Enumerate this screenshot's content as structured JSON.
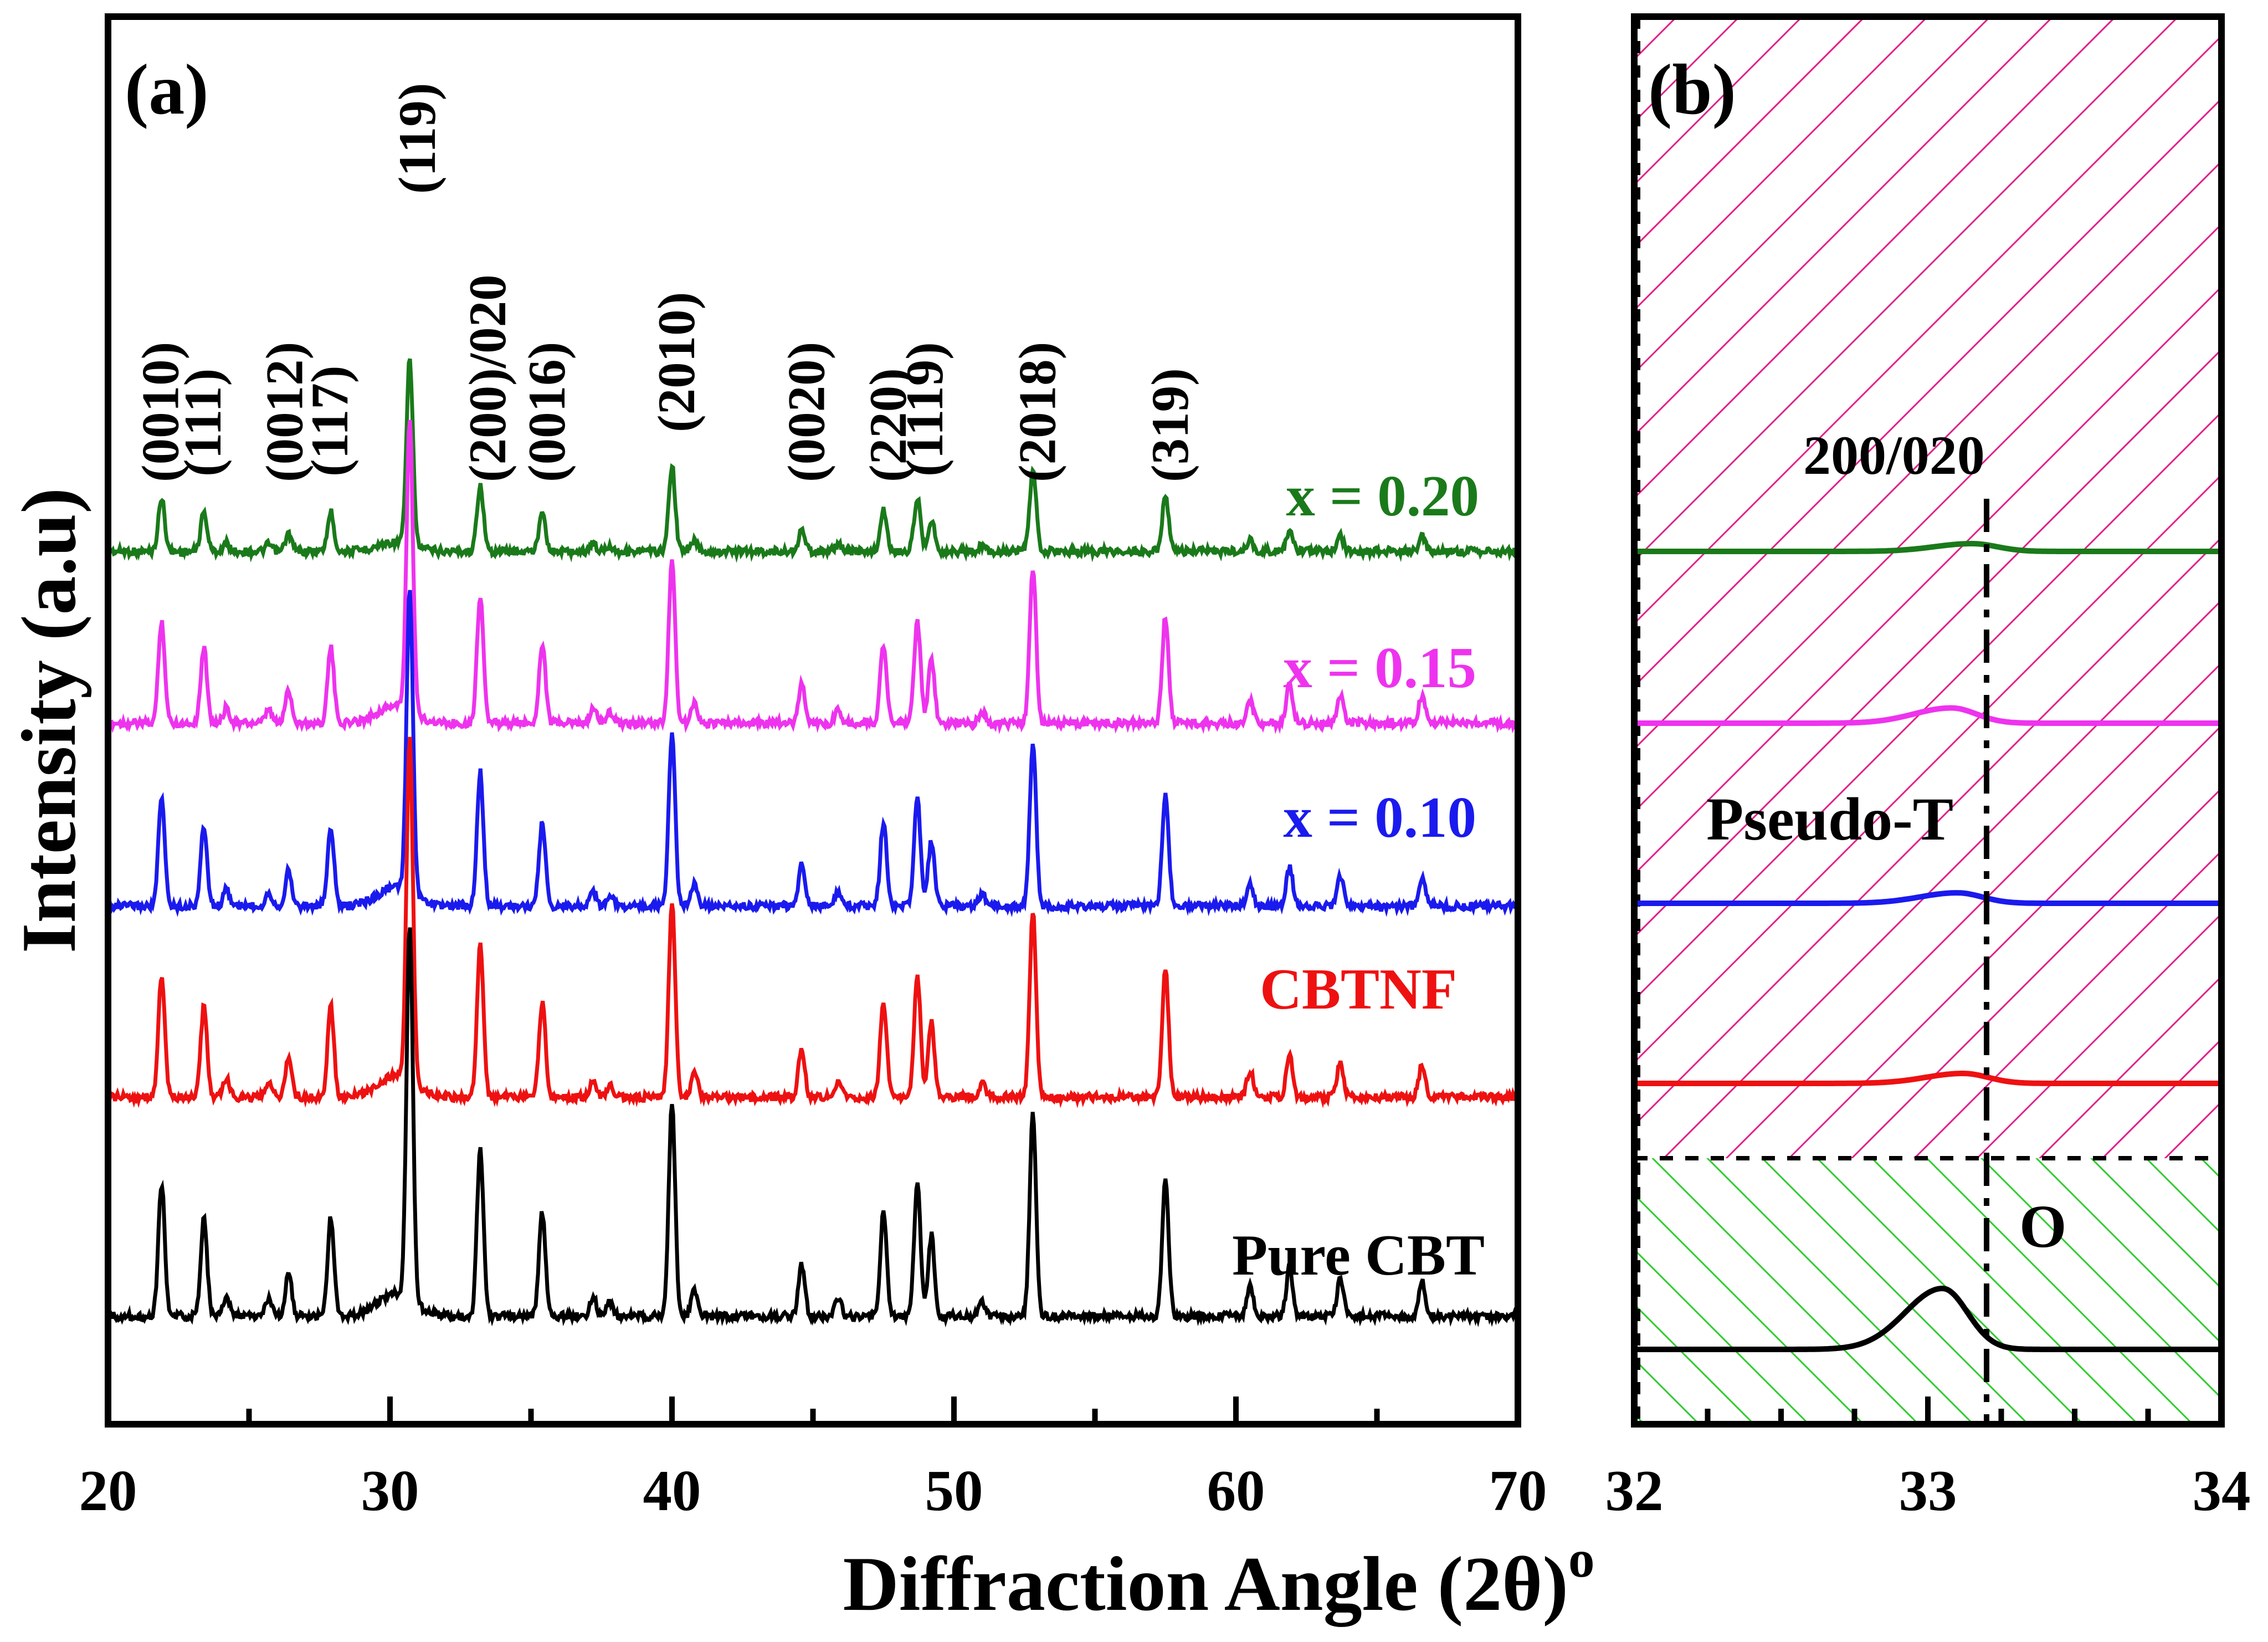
{
  "chart_data": [
    {
      "panel_label": "(a)",
      "type": "line",
      "title": "",
      "xlabel": "Diffraction Angle (2θ)",
      "xlabel_superscript": "o",
      "ylabel": "Intensity (a.u)",
      "xlim": [
        20,
        70
      ],
      "x_ticks": [
        20,
        30,
        40,
        50,
        60,
        70
      ],
      "x_tick_labels": [
        "20",
        "30",
        "40",
        "50",
        "60",
        "70"
      ],
      "grid": false,
      "legend": "inline labels at right of each trace",
      "peaks": [
        {
          "x": 21.9,
          "h": 0.46
        },
        {
          "x": 23.4,
          "h": 0.34
        },
        {
          "x": 24.2,
          "h": 0.07
        },
        {
          "x": 25.7,
          "h": 0.06
        },
        {
          "x": 26.4,
          "h": 0.15
        },
        {
          "x": 27.9,
          "h": 0.34
        },
        {
          "x": 30.7,
          "h": 1.0
        },
        {
          "x": 33.2,
          "h": 0.58
        },
        {
          "x": 35.4,
          "h": 0.36
        },
        {
          "x": 37.2,
          "h": 0.07
        },
        {
          "x": 37.8,
          "h": 0.05
        },
        {
          "x": 40.0,
          "h": 0.74
        },
        {
          "x": 40.8,
          "h": 0.09
        },
        {
          "x": 44.6,
          "h": 0.18
        },
        {
          "x": 45.9,
          "h": 0.06
        },
        {
          "x": 47.5,
          "h": 0.36
        },
        {
          "x": 48.7,
          "h": 0.46
        },
        {
          "x": 49.2,
          "h": 0.28
        },
        {
          "x": 51.0,
          "h": 0.05
        },
        {
          "x": 52.8,
          "h": 0.7
        },
        {
          "x": 57.5,
          "h": 0.48
        },
        {
          "x": 60.5,
          "h": 0.1
        },
        {
          "x": 61.9,
          "h": 0.17
        },
        {
          "x": 63.7,
          "h": 0.13
        },
        {
          "x": 66.6,
          "h": 0.12
        }
      ],
      "hkl_labels": [
        {
          "text": "(0010)",
          "x": 21.9
        },
        {
          "text": "(111)",
          "x": 23.4
        },
        {
          "text": "(0012)",
          "x": 26.3
        },
        {
          "text": "(117)",
          "x": 27.9
        },
        {
          "text": "(119)",
          "x": 31.0
        },
        {
          "text": "(200)/020",
          "x": 33.5
        },
        {
          "text": "(0016)",
          "x": 35.6
        },
        {
          "text": "(2010)",
          "x": 40.2
        },
        {
          "text": "(0020)",
          "x": 44.8
        },
        {
          "text": "(220)",
          "x": 47.7
        },
        {
          "text": "(1119)",
          "x": 49.0
        },
        {
          "text": "(2018)",
          "x": 53.0
        },
        {
          "text": "(319)",
          "x": 57.7
        }
      ],
      "series": [
        {
          "name": "x = 0.20",
          "color": "#1a7a1a",
          "offset": 4,
          "scale": 0.55
        },
        {
          "name": "x = 0.15",
          "color": "#ee33ee",
          "offset": 3,
          "scale": 1.0
        },
        {
          "name": "x = 0.10",
          "color": "#1a1aee",
          "offset": 2,
          "scale": 1.0
        },
        {
          "name": "CBTNF",
          "color": "#ee1111",
          "offset": 1,
          "scale": 1.0
        },
        {
          "name": "Pure CBT",
          "color": "#000000",
          "offset": 0,
          "scale": 1.0
        }
      ]
    },
    {
      "panel_label": "(b)",
      "type": "line",
      "xlim": [
        32,
        34
      ],
      "x_ticks": [
        32,
        33,
        34
      ],
      "x_tick_labels": [
        "32",
        "33",
        "34"
      ],
      "reference_line_x": 33.2,
      "reference_label": "200/020",
      "region_labels": [
        "Pseudo-T",
        "O"
      ],
      "region_colors": [
        "#e0218a",
        "#2ecc2e"
      ],
      "series": [
        {
          "name": "x = 0.20",
          "color": "#1a7a1a",
          "peak_x": 33.15,
          "peak_h": 0.35
        },
        {
          "name": "x = 0.15",
          "color": "#ee33ee",
          "peak_x": 33.08,
          "peak_h": 0.5
        },
        {
          "name": "x = 0.10",
          "color": "#1a1aee",
          "peak_x": 33.1,
          "peak_h": 0.42
        },
        {
          "name": "CBTNF",
          "color": "#ee1111",
          "peak_x": 33.12,
          "peak_h": 0.4
        },
        {
          "name": "Pure CBT",
          "color": "#000000",
          "peak_x": 33.05,
          "peak_h": 1.0
        }
      ]
    }
  ]
}
